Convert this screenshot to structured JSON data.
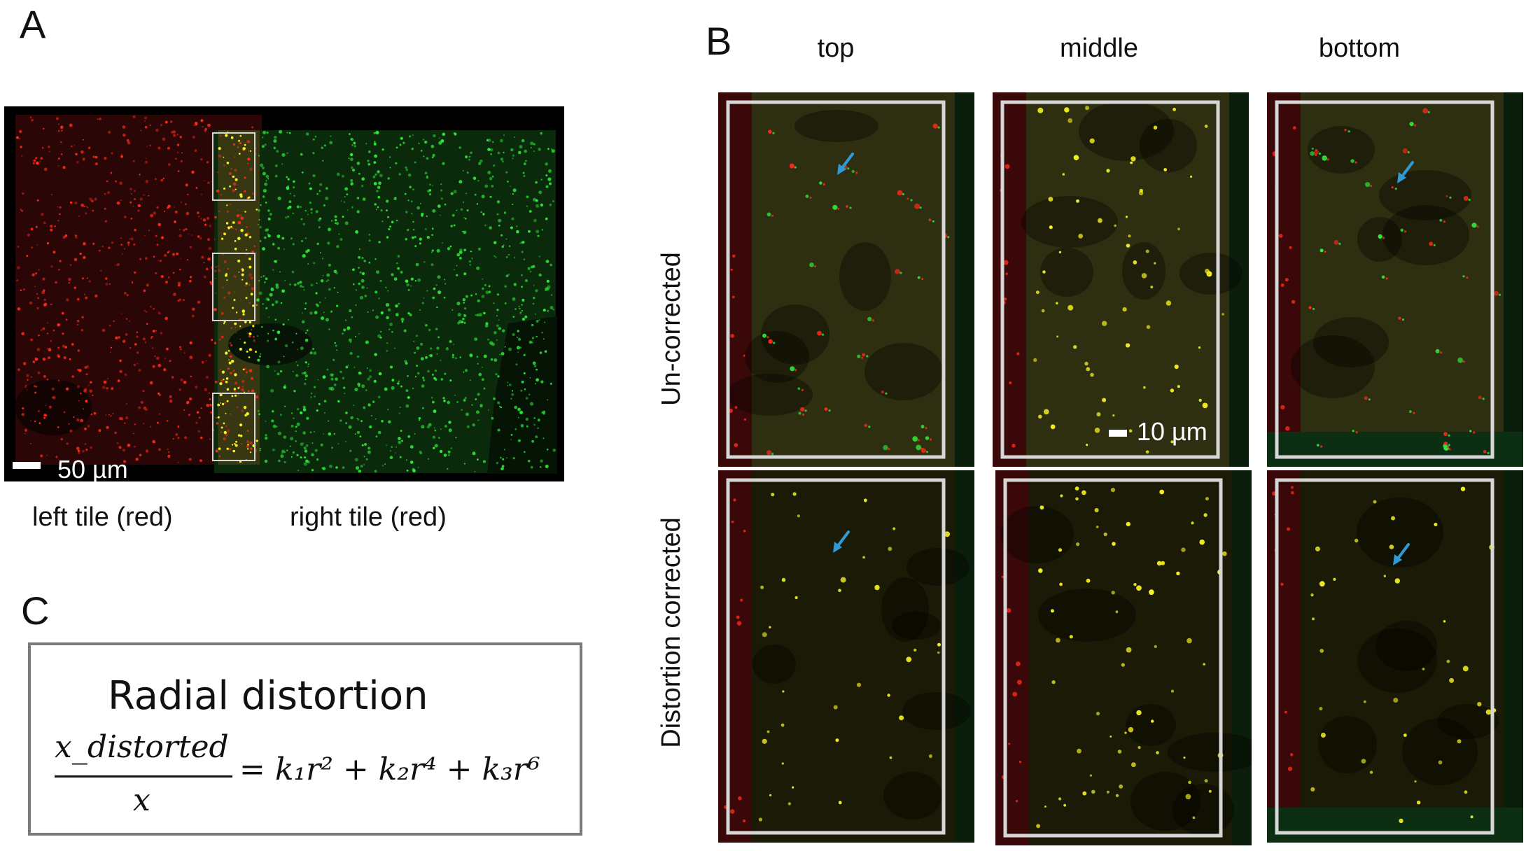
{
  "panels": {
    "a": {
      "letter": "A",
      "scalebar": "50 µm",
      "captions": [
        "left tile (red)",
        "right tile (red)"
      ]
    },
    "b": {
      "letter": "B",
      "columns": [
        "top",
        "middle",
        "bottom"
      ],
      "rows": [
        "Un-corrected",
        "Distortion corrected"
      ],
      "scalebar": "10 µm"
    },
    "c": {
      "letter": "C",
      "title": "Radial distortion",
      "numerator": "x_distorted",
      "denominator": "x",
      "rhs": "= k₁r² + k₂r⁴ + k₃r⁶"
    }
  },
  "colors": {
    "red_channel": "#ff2a1a",
    "green_channel": "#2eea3a",
    "overlap_yellow": "#f5f020",
    "arrow_blue": "#2e9bd6",
    "roi_box": "#d6d6d6"
  }
}
